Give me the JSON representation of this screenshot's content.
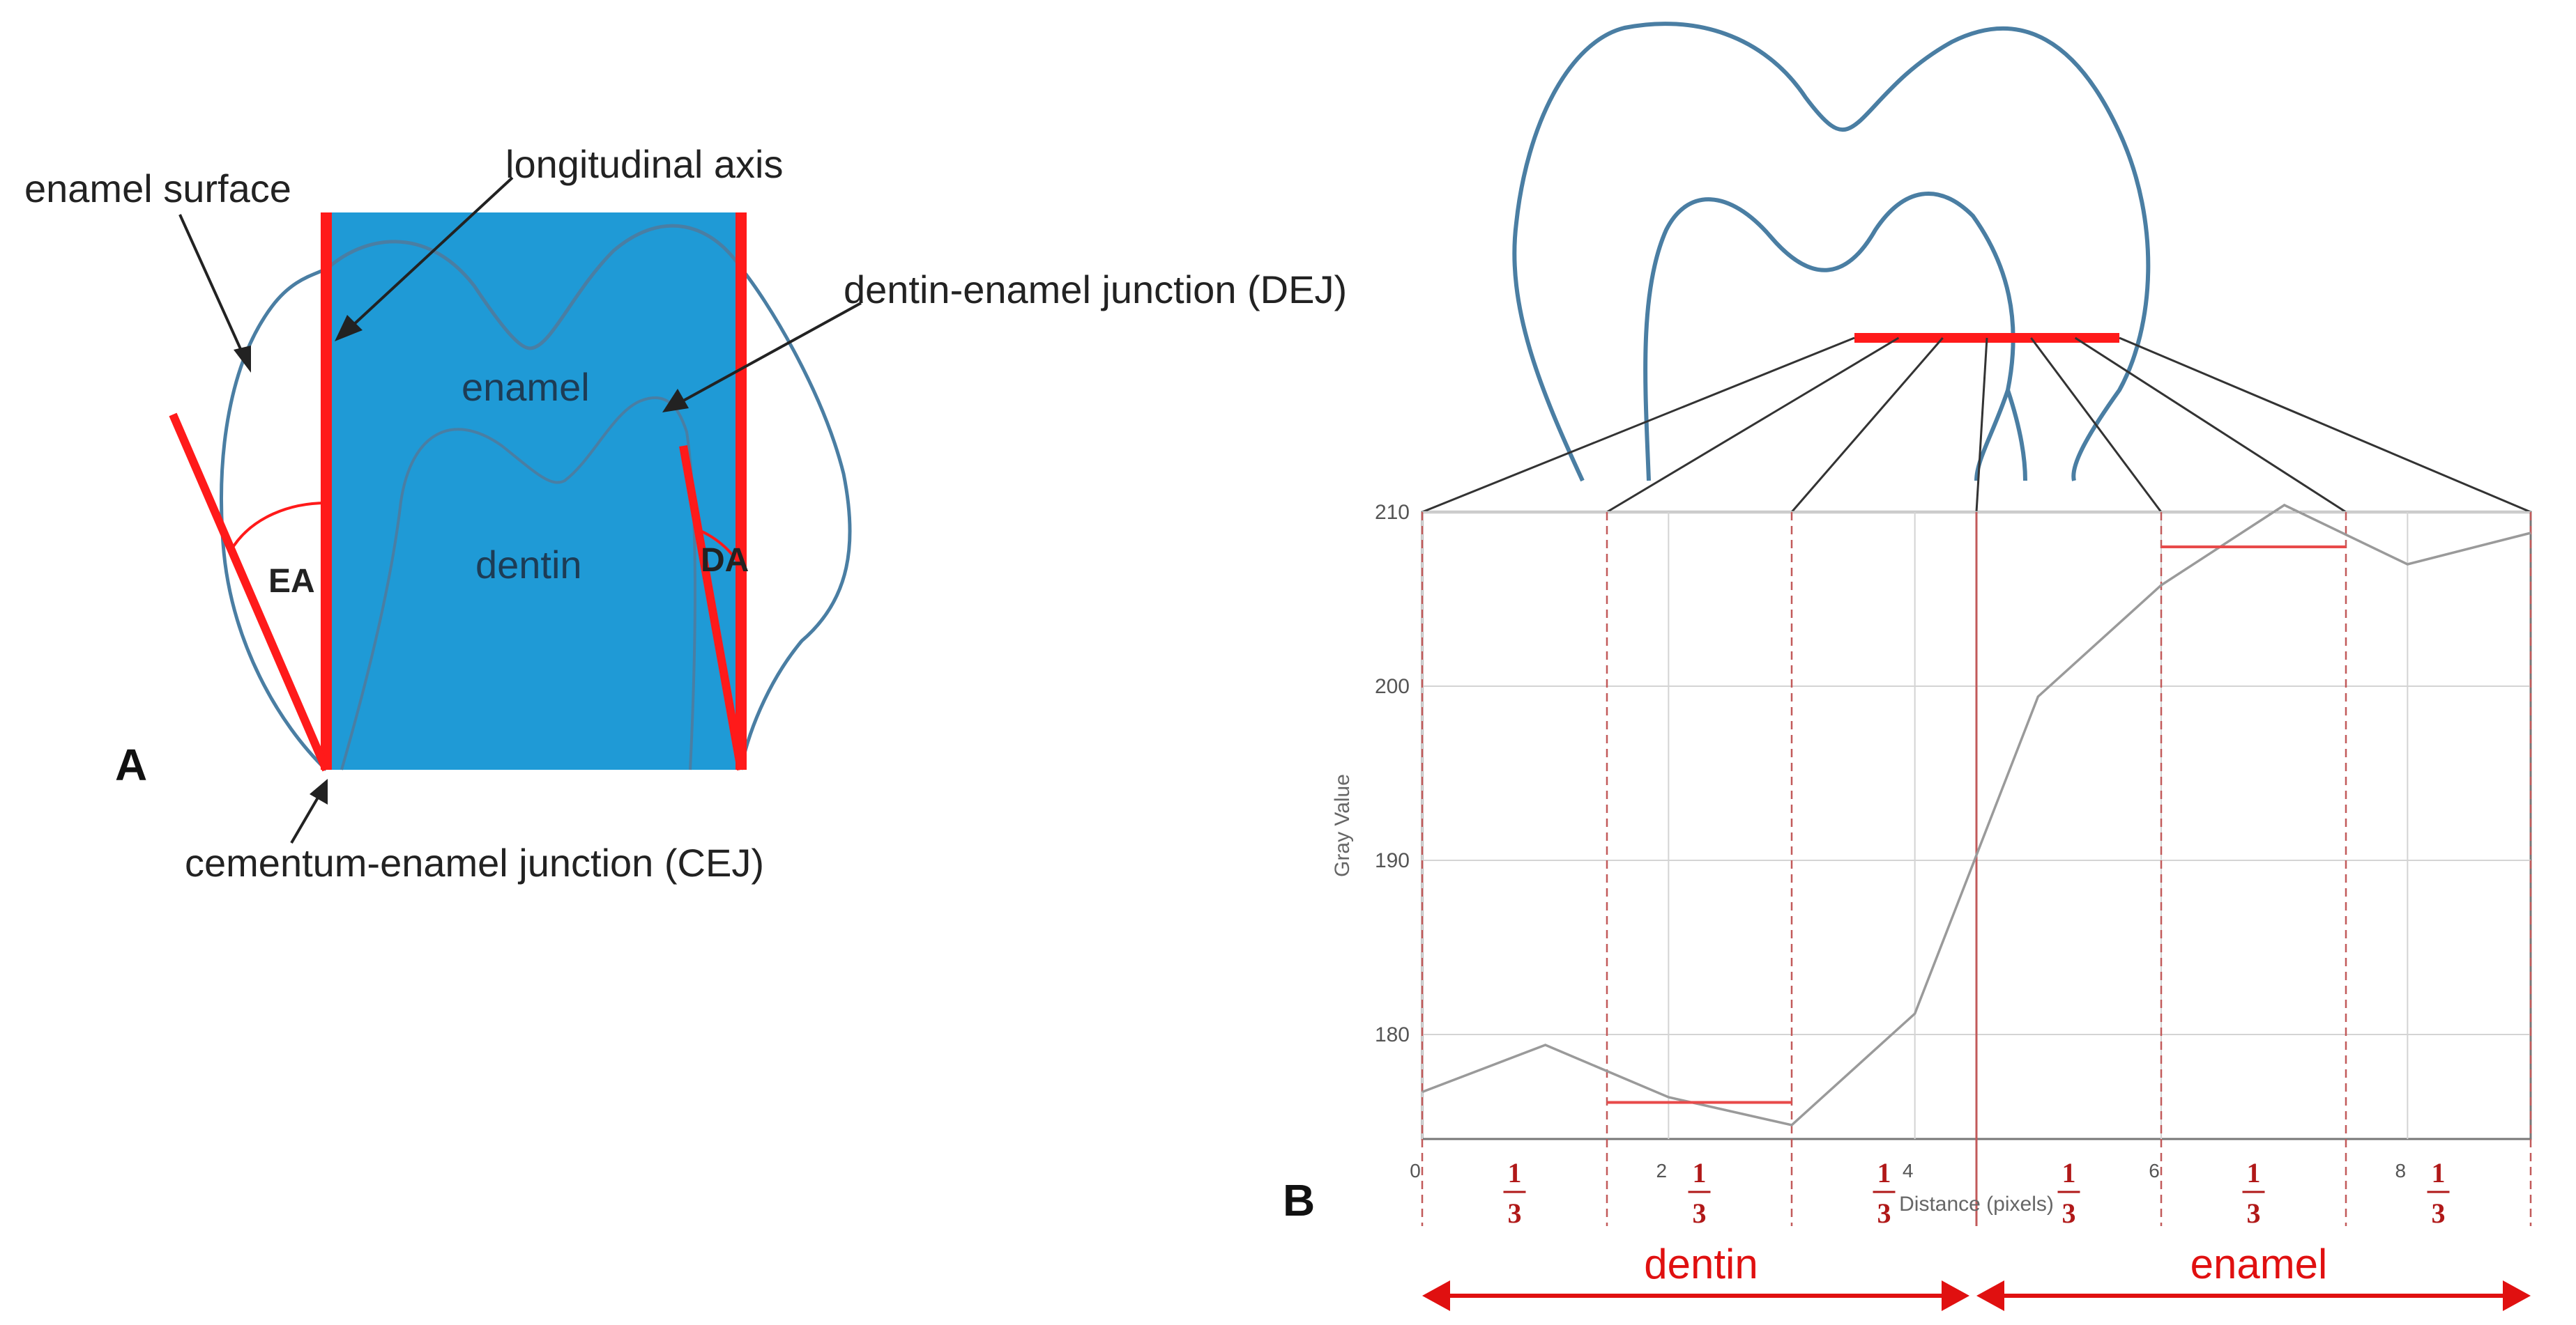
{
  "panel_a": {
    "letter": "A",
    "labels": {
      "enamel_surface": "enamel surface",
      "longitudinal_axis": "longitudinal axis",
      "dej": "dentin-enamel junction (DEJ)",
      "enamel": "enamel",
      "dentin": "dentin",
      "ea": "EA",
      "da": "DA",
      "cej": "cementum-enamel junction (CEJ)"
    },
    "colors": {
      "block": "#1f9ad6",
      "outline": "#4a7ea3",
      "lines": "#ff1a1a",
      "text": "#222222"
    }
  },
  "panel_b": {
    "letter": "B",
    "ylabel": "Gray Value",
    "xlabel": "Distance (pixels)",
    "fraction_num": "1",
    "fraction_den": "3",
    "region_dentin": "dentin",
    "region_enamel": "enamel",
    "colors": {
      "profile": "#9a9a9a",
      "segment": "#e84a4a",
      "dashed": "#c25a5a",
      "region": "#e01010",
      "outline": "#4a7ea3",
      "bar": "#ff1a1a"
    }
  },
  "chart_data": {
    "type": "line",
    "xlabel": "Distance (pixels)",
    "ylabel": "Gray Value",
    "xlim": [
      0,
      9
    ],
    "ylim": [
      174,
      210
    ],
    "xticks": [
      0,
      2,
      4,
      6,
      8
    ],
    "yticks": [
      180,
      190,
      200,
      210
    ],
    "grid": true,
    "series": [
      {
        "x": [
          0,
          1,
          2,
          3,
          4,
          5,
          6,
          7,
          8,
          9
        ],
        "y": [
          176.7,
          179.4,
          176.4,
          174.8,
          181.2,
          199.4,
          205.8,
          210.4,
          207.0,
          208.8
        ]
      }
    ],
    "segment_boundaries": [
      0,
      1.5,
      3,
      4.5,
      6,
      7.5,
      9
    ],
    "segment_means": [
      {
        "x0": 1.5,
        "x1": 3,
        "y": 176.1
      },
      {
        "x0": 6,
        "x1": 7.5,
        "y": 208.0
      }
    ]
  }
}
